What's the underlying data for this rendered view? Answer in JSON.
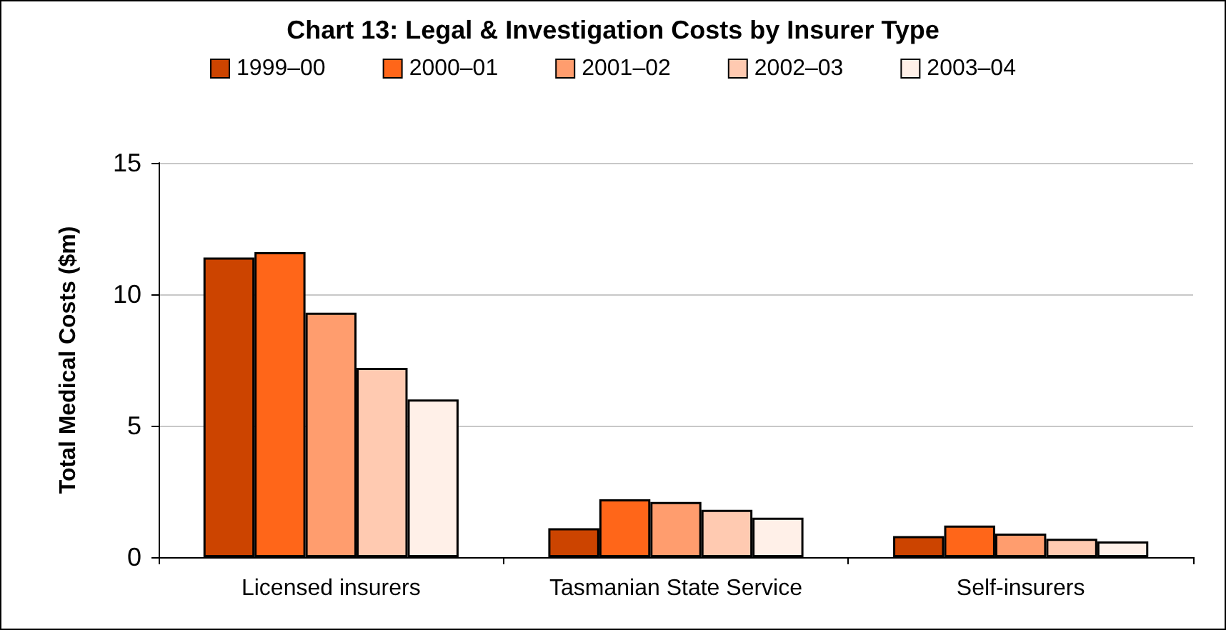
{
  "chart_data": {
    "type": "bar",
    "title": "Chart 13: Legal & Investigation Costs by Insurer Type",
    "ylabel": "Total Medical Costs ($m)",
    "categories": [
      "Licensed insurers",
      "Tasmanian State Service",
      "Self-insurers"
    ],
    "series": [
      {
        "name": "1999–00",
        "color": "#cc4400",
        "values": [
          11.4,
          1.1,
          0.8
        ]
      },
      {
        "name": "2000–01",
        "color": "#ff6619",
        "values": [
          11.6,
          2.2,
          1.2
        ]
      },
      {
        "name": "2001–02",
        "color": "#ff9d6e",
        "values": [
          9.3,
          2.1,
          0.9
        ]
      },
      {
        "name": "2002–03",
        "color": "#ffcab1",
        "values": [
          7.2,
          1.8,
          0.7
        ]
      },
      {
        "name": "2003–04",
        "color": "#fff0e8",
        "values": [
          6.0,
          1.5,
          0.6
        ]
      }
    ],
    "ylim": [
      0,
      15
    ],
    "yticks": [
      0,
      5,
      10,
      15
    ],
    "grid": "y",
    "legend": "top"
  }
}
